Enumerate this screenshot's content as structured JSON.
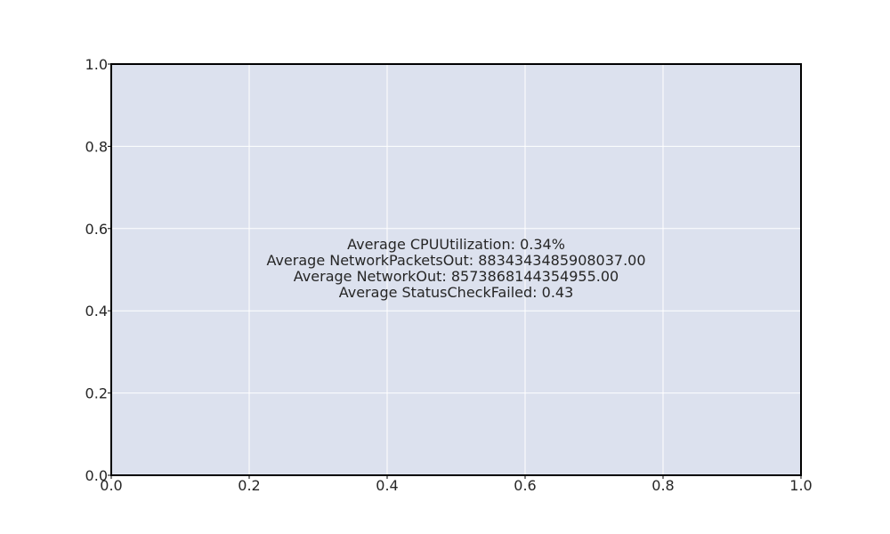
{
  "chart_data": {
    "type": "text",
    "title": "",
    "xlabel": "",
    "ylabel": "",
    "xlim": [
      0.0,
      1.0
    ],
    "ylim": [
      0.0,
      1.0
    ],
    "grid": true,
    "x_ticks": [
      "0.0",
      "0.2",
      "0.4",
      "0.6",
      "0.8",
      "1.0"
    ],
    "y_ticks": [
      "0.0",
      "0.2",
      "0.4",
      "0.6",
      "0.8",
      "1.0"
    ],
    "annotation": {
      "x": 0.5,
      "y": 0.5,
      "lines": [
        "Average CPUUtilization: 0.34%",
        "Average NetworkPacketsOut: 8834343485908037.00",
        "Average NetworkOut: 8573868144354955.00",
        "Average StatusCheckFailed: 0.43"
      ]
    },
    "colors": {
      "plot_background": "#dce1ee",
      "grid": "#ffffff",
      "axes": "#000000",
      "text": "#262626"
    }
  }
}
